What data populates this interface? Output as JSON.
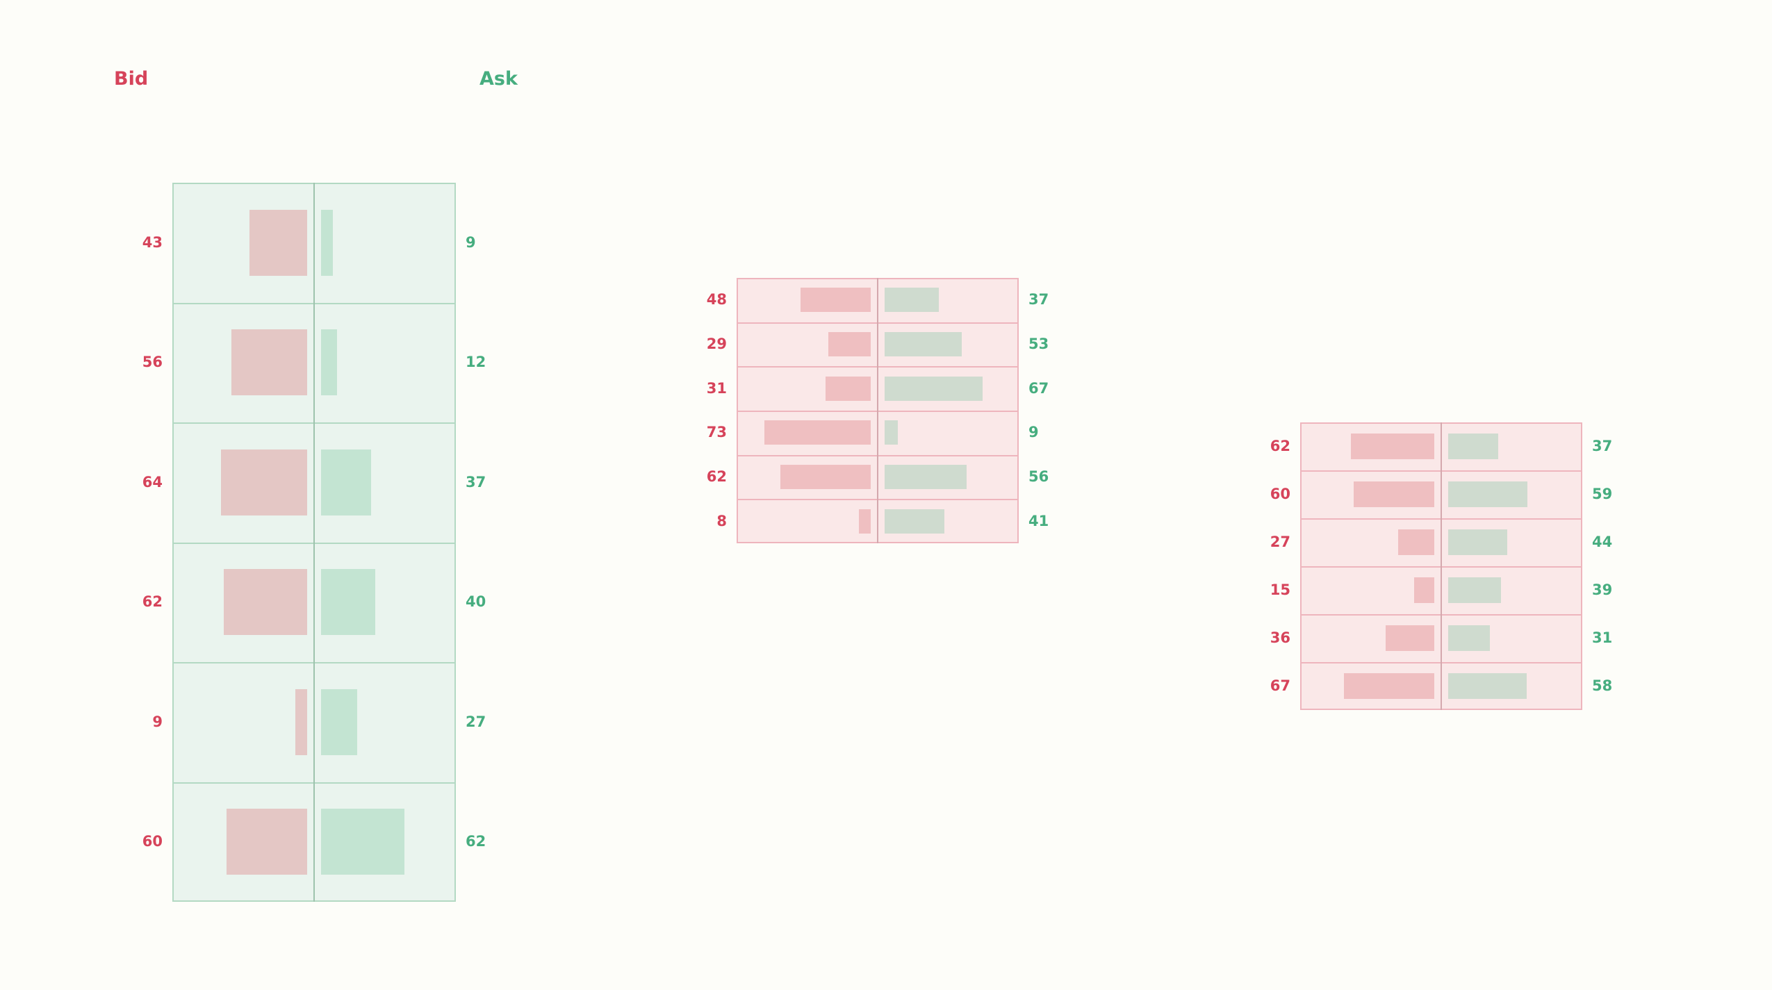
{
  "legend": {
    "bid_label": "Bid",
    "ask_label": "Ask"
  },
  "colors": {
    "bid_text": "#d6435a",
    "ask_text": "#46ad7f",
    "green_panel_bg": "#eaf4ee",
    "green_panel_border": "#b3d9c3",
    "green_divider": "#9ec3ad",
    "green_panel_bid_bar": "#e4c7c5",
    "green_panel_ask_bar": "#c3e4d2",
    "red_panel_bg": "#fae8e8",
    "red_panel_border": "#eeb5bd",
    "red_divider": "#d4a8ad",
    "red_panel_bid_bar": "#efbfc1",
    "red_panel_ask_bar": "#cfdbcf"
  },
  "chart_data": [
    {
      "type": "bar",
      "layout": "order-book mirrored horizontal bars",
      "theme": "green",
      "bid": [
        43,
        56,
        64,
        62,
        9,
        60
      ],
      "ask": [
        9,
        12,
        37,
        40,
        27,
        62
      ]
    },
    {
      "type": "bar",
      "layout": "order-book mirrored horizontal bars",
      "theme": "red",
      "bid": [
        48,
        29,
        31,
        73,
        62,
        8
      ],
      "ask": [
        37,
        53,
        67,
        9,
        56,
        41
      ]
    },
    {
      "type": "bar",
      "layout": "order-book mirrored horizontal bars",
      "theme": "red",
      "bid": [
        62,
        60,
        27,
        15,
        36,
        67
      ],
      "ask": [
        37,
        59,
        44,
        39,
        31,
        58
      ]
    }
  ]
}
